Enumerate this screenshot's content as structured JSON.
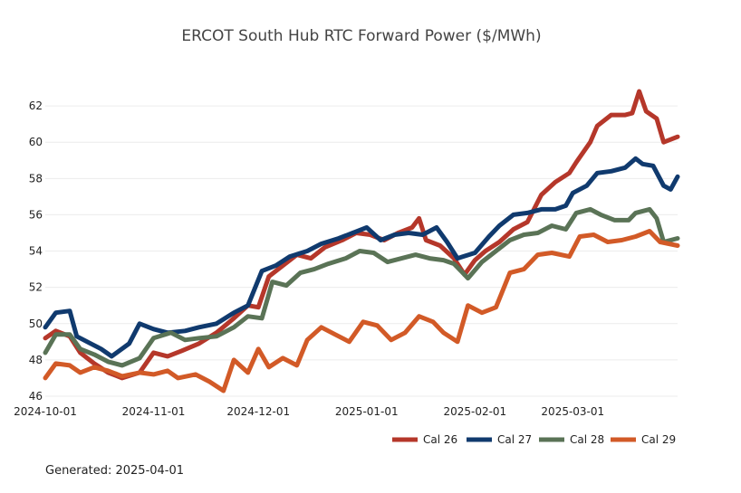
{
  "chart_data": {
    "type": "line",
    "title": "ERCOT South Hub RTC Forward Power ($/MWh)",
    "xlabel": "",
    "ylabel": "",
    "ylim": [
      45.9,
      63.6
    ],
    "yticks": [
      46,
      48,
      50,
      52,
      54,
      56,
      58,
      60,
      62
    ],
    "xlim": [
      "2024-10-01",
      "2025-03-31"
    ],
    "xticks": [
      "2024-10-01",
      "2024-11-01",
      "2024-12-01",
      "2025-01-01",
      "2025-02-01",
      "2025-03-01"
    ],
    "grid": "horizontal",
    "legend_position": "bottom-right",
    "series": [
      {
        "name": "Cal 26",
        "color": "#b5372a",
        "points": [
          [
            "2024-10-01",
            49.2
          ],
          [
            "2024-10-04",
            49.6
          ],
          [
            "2024-10-08",
            49.3
          ],
          [
            "2024-10-11",
            48.4
          ],
          [
            "2024-10-15",
            47.8
          ],
          [
            "2024-10-19",
            47.3
          ],
          [
            "2024-10-23",
            47.0
          ],
          [
            "2024-10-28",
            47.3
          ],
          [
            "2024-11-01",
            48.4
          ],
          [
            "2024-11-05",
            48.2
          ],
          [
            "2024-11-09",
            48.5
          ],
          [
            "2024-11-14",
            48.9
          ],
          [
            "2024-11-19",
            49.5
          ],
          [
            "2024-11-24",
            50.3
          ],
          [
            "2024-11-28",
            51.0
          ],
          [
            "2024-12-01",
            50.9
          ],
          [
            "2024-12-04",
            52.6
          ],
          [
            "2024-12-08",
            53.2
          ],
          [
            "2024-12-12",
            53.8
          ],
          [
            "2024-12-16",
            53.6
          ],
          [
            "2024-12-20",
            54.2
          ],
          [
            "2024-12-25",
            54.6
          ],
          [
            "2024-12-29",
            55.0
          ],
          [
            "2025-01-02",
            54.9
          ],
          [
            "2025-01-06",
            54.6
          ],
          [
            "2025-01-10",
            55.0
          ],
          [
            "2025-01-14",
            55.3
          ],
          [
            "2025-01-16",
            55.8
          ],
          [
            "2025-01-18",
            54.6
          ],
          [
            "2025-01-22",
            54.3
          ],
          [
            "2025-01-26",
            53.6
          ],
          [
            "2025-01-29",
            52.7
          ],
          [
            "2025-02-01",
            53.5
          ],
          [
            "2025-02-04",
            54.0
          ],
          [
            "2025-02-08",
            54.5
          ],
          [
            "2025-02-12",
            55.2
          ],
          [
            "2025-02-16",
            55.6
          ],
          [
            "2025-02-20",
            57.1
          ],
          [
            "2025-02-24",
            57.8
          ],
          [
            "2025-02-28",
            58.3
          ],
          [
            "2025-03-02",
            58.9
          ],
          [
            "2025-03-06",
            60.0
          ],
          [
            "2025-03-08",
            60.9
          ],
          [
            "2025-03-12",
            61.5
          ],
          [
            "2025-03-16",
            61.5
          ],
          [
            "2025-03-18",
            61.6
          ],
          [
            "2025-03-20",
            62.8
          ],
          [
            "2025-03-22",
            61.7
          ],
          [
            "2025-03-25",
            61.3
          ],
          [
            "2025-03-27",
            60.0
          ],
          [
            "2025-03-31",
            60.3
          ]
        ]
      },
      {
        "name": "Cal 27",
        "color": "#103a6e",
        "points": [
          [
            "2024-10-01",
            49.8
          ],
          [
            "2024-10-04",
            50.6
          ],
          [
            "2024-10-08",
            50.7
          ],
          [
            "2024-10-10",
            49.3
          ],
          [
            "2024-10-14",
            48.9
          ],
          [
            "2024-10-17",
            48.6
          ],
          [
            "2024-10-20",
            48.2
          ],
          [
            "2024-10-25",
            48.9
          ],
          [
            "2024-10-28",
            50.0
          ],
          [
            "2024-11-01",
            49.7
          ],
          [
            "2024-11-05",
            49.5
          ],
          [
            "2024-11-10",
            49.6
          ],
          [
            "2024-11-14",
            49.8
          ],
          [
            "2024-11-19",
            50.0
          ],
          [
            "2024-11-24",
            50.6
          ],
          [
            "2024-11-28",
            51.0
          ],
          [
            "2024-12-02",
            52.9
          ],
          [
            "2024-12-06",
            53.2
          ],
          [
            "2024-12-10",
            53.7
          ],
          [
            "2024-12-15",
            54.0
          ],
          [
            "2024-12-19",
            54.4
          ],
          [
            "2024-12-24",
            54.7
          ],
          [
            "2024-12-28",
            55.0
          ],
          [
            "2025-01-01",
            55.3
          ],
          [
            "2025-01-05",
            54.6
          ],
          [
            "2025-01-09",
            54.9
          ],
          [
            "2025-01-13",
            55.0
          ],
          [
            "2025-01-17",
            54.9
          ],
          [
            "2025-01-21",
            55.3
          ],
          [
            "2025-01-24",
            54.5
          ],
          [
            "2025-01-27",
            53.6
          ],
          [
            "2025-02-01",
            53.9
          ],
          [
            "2025-02-05",
            54.8
          ],
          [
            "2025-02-08",
            55.4
          ],
          [
            "2025-02-12",
            56.0
          ],
          [
            "2025-02-16",
            56.1
          ],
          [
            "2025-02-20",
            56.3
          ],
          [
            "2025-02-24",
            56.3
          ],
          [
            "2025-02-27",
            56.5
          ],
          [
            "2025-03-01",
            57.2
          ],
          [
            "2025-03-05",
            57.6
          ],
          [
            "2025-03-08",
            58.3
          ],
          [
            "2025-03-12",
            58.4
          ],
          [
            "2025-03-16",
            58.6
          ],
          [
            "2025-03-19",
            59.1
          ],
          [
            "2025-03-21",
            58.8
          ],
          [
            "2025-03-24",
            58.7
          ],
          [
            "2025-03-27",
            57.6
          ],
          [
            "2025-03-29",
            57.4
          ],
          [
            "2025-03-31",
            58.1
          ]
        ]
      },
      {
        "name": "Cal 28",
        "color": "#5a7356",
        "points": [
          [
            "2024-10-01",
            48.4
          ],
          [
            "2024-10-04",
            49.4
          ],
          [
            "2024-10-08",
            49.4
          ],
          [
            "2024-10-11",
            48.6
          ],
          [
            "2024-10-15",
            48.3
          ],
          [
            "2024-10-19",
            47.9
          ],
          [
            "2024-10-23",
            47.7
          ],
          [
            "2024-10-28",
            48.1
          ],
          [
            "2024-11-01",
            49.2
          ],
          [
            "2024-11-06",
            49.5
          ],
          [
            "2024-11-10",
            49.1
          ],
          [
            "2024-11-14",
            49.2
          ],
          [
            "2024-11-19",
            49.3
          ],
          [
            "2024-11-24",
            49.8
          ],
          [
            "2024-11-28",
            50.4
          ],
          [
            "2024-12-02",
            50.3
          ],
          [
            "2024-12-05",
            52.3
          ],
          [
            "2024-12-09",
            52.1
          ],
          [
            "2024-12-13",
            52.8
          ],
          [
            "2024-12-17",
            53.0
          ],
          [
            "2024-12-21",
            53.3
          ],
          [
            "2024-12-26",
            53.6
          ],
          [
            "2024-12-30",
            54.0
          ],
          [
            "2025-01-03",
            53.9
          ],
          [
            "2025-01-07",
            53.4
          ],
          [
            "2025-01-11",
            53.6
          ],
          [
            "2025-01-15",
            53.8
          ],
          [
            "2025-01-19",
            53.6
          ],
          [
            "2025-01-23",
            53.5
          ],
          [
            "2025-01-26",
            53.3
          ],
          [
            "2025-01-30",
            52.5
          ],
          [
            "2025-02-03",
            53.4
          ],
          [
            "2025-02-07",
            54.0
          ],
          [
            "2025-02-11",
            54.6
          ],
          [
            "2025-02-15",
            54.9
          ],
          [
            "2025-02-19",
            55.0
          ],
          [
            "2025-02-23",
            55.4
          ],
          [
            "2025-02-27",
            55.2
          ],
          [
            "2025-03-02",
            56.1
          ],
          [
            "2025-03-06",
            56.3
          ],
          [
            "2025-03-09",
            56.0
          ],
          [
            "2025-03-13",
            55.7
          ],
          [
            "2025-03-17",
            55.7
          ],
          [
            "2025-03-19",
            56.1
          ],
          [
            "2025-03-23",
            56.3
          ],
          [
            "2025-03-25",
            55.8
          ],
          [
            "2025-03-27",
            54.5
          ],
          [
            "2025-03-31",
            54.7
          ]
        ]
      },
      {
        "name": "Cal 29",
        "color": "#d25a27",
        "points": [
          [
            "2024-10-01",
            47.0
          ],
          [
            "2024-10-04",
            47.8
          ],
          [
            "2024-10-08",
            47.7
          ],
          [
            "2024-10-11",
            47.3
          ],
          [
            "2024-10-15",
            47.6
          ],
          [
            "2024-10-19",
            47.4
          ],
          [
            "2024-10-23",
            47.1
          ],
          [
            "2024-10-28",
            47.3
          ],
          [
            "2024-11-01",
            47.2
          ],
          [
            "2024-11-05",
            47.4
          ],
          [
            "2024-11-08",
            47.0
          ],
          [
            "2024-11-13",
            47.2
          ],
          [
            "2024-11-17",
            46.8
          ],
          [
            "2024-11-21",
            46.3
          ],
          [
            "2024-11-24",
            48.0
          ],
          [
            "2024-11-28",
            47.3
          ],
          [
            "2024-12-01",
            48.6
          ],
          [
            "2024-12-04",
            47.6
          ],
          [
            "2024-12-08",
            48.1
          ],
          [
            "2024-12-12",
            47.7
          ],
          [
            "2024-12-15",
            49.1
          ],
          [
            "2024-12-19",
            49.8
          ],
          [
            "2024-12-23",
            49.4
          ],
          [
            "2024-12-27",
            49.0
          ],
          [
            "2024-12-31",
            50.1
          ],
          [
            "2025-01-04",
            49.9
          ],
          [
            "2025-01-08",
            49.1
          ],
          [
            "2025-01-12",
            49.5
          ],
          [
            "2025-01-16",
            50.4
          ],
          [
            "2025-01-20",
            50.1
          ],
          [
            "2025-01-23",
            49.5
          ],
          [
            "2025-01-27",
            49.0
          ],
          [
            "2025-01-30",
            51.0
          ],
          [
            "2025-02-03",
            50.6
          ],
          [
            "2025-02-07",
            50.9
          ],
          [
            "2025-02-11",
            52.8
          ],
          [
            "2025-02-15",
            53.0
          ],
          [
            "2025-02-19",
            53.8
          ],
          [
            "2025-02-23",
            53.9
          ],
          [
            "2025-02-28",
            53.7
          ],
          [
            "2025-03-03",
            54.8
          ],
          [
            "2025-03-07",
            54.9
          ],
          [
            "2025-03-11",
            54.5
          ],
          [
            "2025-03-15",
            54.6
          ],
          [
            "2025-03-19",
            54.8
          ],
          [
            "2025-03-23",
            55.1
          ],
          [
            "2025-03-26",
            54.5
          ],
          [
            "2025-03-31",
            54.3
          ]
        ]
      }
    ]
  },
  "footer": {
    "generated": "Generated: 2025-04-01"
  }
}
